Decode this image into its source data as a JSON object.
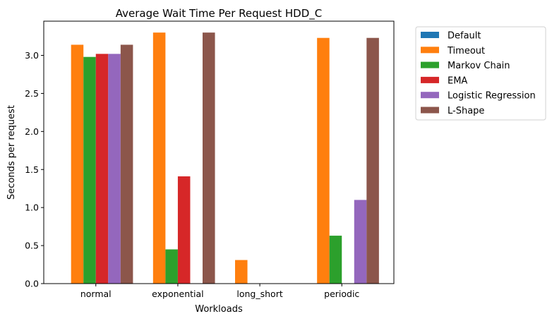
{
  "chart_data": {
    "type": "bar",
    "title": "Average Wait Time Per Request HDD_C",
    "xlabel": "Workloads",
    "ylabel": "Seconds per request",
    "ylim": [
      0,
      3.45
    ],
    "yticks": [
      0.0,
      0.5,
      1.0,
      1.5,
      2.0,
      2.5,
      3.0
    ],
    "ytick_labels": [
      "0.0",
      "0.5",
      "1.0",
      "1.5",
      "2.0",
      "2.5",
      "3.0"
    ],
    "categories": [
      "normal",
      "exponential",
      "long_short",
      "periodic"
    ],
    "grid": false,
    "legend_position": "outside-top-right",
    "series": [
      {
        "name": "Default",
        "color": "#1f77b4",
        "values": [
          0,
          0,
          0,
          0
        ]
      },
      {
        "name": "Timeout",
        "color": "#ff7f0e",
        "values": [
          3.14,
          3.3,
          0.31,
          3.23
        ]
      },
      {
        "name": "Markov Chain",
        "color": "#2ca02c",
        "values": [
          2.98,
          0.45,
          0,
          0.63
        ]
      },
      {
        "name": "EMA",
        "color": "#d62728",
        "values": [
          3.02,
          1.41,
          0,
          0
        ]
      },
      {
        "name": "Logistic Regression",
        "color": "#9467bd",
        "values": [
          3.02,
          0,
          0,
          1.1
        ]
      },
      {
        "name": "L-Shape",
        "color": "#8c564b",
        "values": [
          3.14,
          3.3,
          0,
          3.23
        ]
      }
    ]
  }
}
